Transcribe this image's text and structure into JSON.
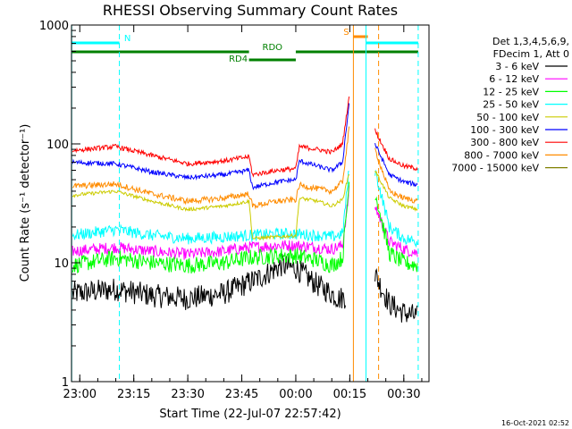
{
  "chart_data": {
    "type": "line",
    "title": "RHESSI Observing Summary Count Rates",
    "xlabel": "Start Time (22-Jul-07 22:57:42)",
    "ylabel": "Count Rate (s⁻¹ detector⁻¹)",
    "y_scale": "log",
    "ylim": [
      1,
      1000
    ],
    "xlim": [
      "22:57:42",
      "00:37:00"
    ],
    "x_ticks": [
      "23:00",
      "23:15",
      "23:30",
      "23:45",
      "00:00",
      "00:15",
      "00:30"
    ],
    "y_ticks": [
      "1",
      "10",
      "100",
      "1000"
    ],
    "legend_header": [
      "Det 1,3,4,5,6,9,",
      "FDecim 1, Att 0"
    ],
    "legend_position": "right",
    "footer_date": "16-Oct-2021 02:52",
    "flags": [
      {
        "label": "N",
        "color": "#00ffff",
        "segments": [
          [
            "22:57:42",
            "23:11:00"
          ],
          [
            "00:19:30",
            "00:34:00"
          ]
        ]
      },
      {
        "label": "S",
        "color": "#ff8c00",
        "segments": [
          [
            "00:16:00",
            "00:20:00"
          ]
        ]
      },
      {
        "label": "RDO",
        "color": "#008000",
        "segments": [
          [
            "22:57:42",
            "23:47:00"
          ],
          [
            "00:00:00",
            "00:34:00"
          ]
        ]
      },
      {
        "label": "RD4",
        "color": "#008000",
        "segments": [
          [
            "23:47:00",
            "00:00:00"
          ]
        ]
      }
    ],
    "series": [
      {
        "name": "3 - 6 keV",
        "color": "#000000",
        "noise": 0.1,
        "points": [
          [
            "22:58",
            5.5
          ],
          [
            "23:10",
            6.0
          ],
          [
            "23:20",
            5.3
          ],
          [
            "23:30",
            5.0
          ],
          [
            "23:40",
            5.5
          ],
          [
            "23:50",
            7.5
          ],
          [
            "23:56",
            9.5
          ],
          [
            "00:00",
            9.0
          ],
          [
            "00:06",
            6.5
          ],
          [
            "00:10",
            5.5
          ],
          [
            "00:12",
            5.0
          ],
          [
            "00:14",
            5.2
          ]
        ],
        "post": [
          [
            "00:22",
            8.0
          ],
          [
            "00:26",
            4.5
          ],
          [
            "00:30",
            3.8
          ],
          [
            "00:34",
            3.5
          ]
        ]
      },
      {
        "name": "6 - 12 keV",
        "color": "#ff00ff",
        "noise": 0.05,
        "points": [
          [
            "22:58",
            12.5
          ],
          [
            "23:10",
            13.5
          ],
          [
            "23:20",
            12.5
          ],
          [
            "23:30",
            11.8
          ],
          [
            "23:40",
            12.5
          ],
          [
            "23:47",
            13.5
          ],
          [
            "23:55",
            14.0
          ],
          [
            "00:00",
            14.0
          ],
          [
            "00:06",
            13.5
          ],
          [
            "00:10",
            13.0
          ],
          [
            "00:13",
            14.0
          ],
          [
            "00:15",
            45.0
          ]
        ],
        "post": [
          [
            "00:22",
            30.0
          ],
          [
            "00:26",
            15.0
          ],
          [
            "00:30",
            13.0
          ],
          [
            "00:34",
            12.0
          ]
        ]
      },
      {
        "name": "12 - 25 keV",
        "color": "#00ff00",
        "noise": 0.07,
        "points": [
          [
            "22:58",
            9.5
          ],
          [
            "23:10",
            11.0
          ],
          [
            "23:20",
            10.0
          ],
          [
            "23:30",
            9.5
          ],
          [
            "23:40",
            10.0
          ],
          [
            "23:47",
            11.0
          ],
          [
            "23:55",
            11.5
          ],
          [
            "00:00",
            11.5
          ],
          [
            "00:06",
            10.5
          ],
          [
            "00:10",
            9.5
          ],
          [
            "00:13",
            11.0
          ],
          [
            "00:15",
            55.0
          ]
        ],
        "post": [
          [
            "00:22",
            40.0
          ],
          [
            "00:26",
            12.0
          ],
          [
            "00:30",
            10.0
          ],
          [
            "00:34",
            9.5
          ]
        ]
      },
      {
        "name": "25 - 50 keV",
        "color": "#00ffff",
        "noise": 0.05,
        "points": [
          [
            "22:58",
            17.0
          ],
          [
            "23:10",
            19.0
          ],
          [
            "23:20",
            17.0
          ],
          [
            "23:30",
            16.0
          ],
          [
            "23:40",
            16.5
          ],
          [
            "23:47",
            17.0
          ],
          [
            "23:55",
            17.5
          ],
          [
            "00:00",
            17.5
          ],
          [
            "00:06",
            17.0
          ],
          [
            "00:10",
            16.5
          ],
          [
            "00:13",
            17.5
          ],
          [
            "00:15",
            70.0
          ]
        ],
        "post": [
          [
            "00:22",
            60.0
          ],
          [
            "00:26",
            20.0
          ],
          [
            "00:30",
            16.0
          ],
          [
            "00:34",
            15.0
          ]
        ]
      },
      {
        "name": "50 - 100 keV",
        "color": "#cccc00",
        "noise": 0.015,
        "points": [
          [
            "22:58",
            37.0
          ],
          [
            "23:10",
            40.0
          ],
          [
            "23:20",
            33.0
          ],
          [
            "23:30",
            28.0
          ],
          [
            "23:40",
            30.0
          ],
          [
            "23:47",
            33.0
          ],
          [
            "23:48",
            16.0
          ],
          [
            "23:55",
            16.5
          ],
          [
            "00:00",
            17.0
          ],
          [
            "00:01",
            35.0
          ],
          [
            "00:06",
            33.0
          ],
          [
            "00:10",
            30.0
          ],
          [
            "00:13",
            34.0
          ],
          [
            "00:15",
            60.0
          ]
        ],
        "post": [
          [
            "00:22",
            60.0
          ],
          [
            "00:26",
            35.0
          ],
          [
            "00:30",
            30.0
          ],
          [
            "00:34",
            28.0
          ]
        ]
      },
      {
        "name": "100 - 300 keV",
        "color": "#0000ff",
        "noise": 0.02,
        "points": [
          [
            "22:58",
            70.0
          ],
          [
            "23:10",
            68.0
          ],
          [
            "23:20",
            58.0
          ],
          [
            "23:30",
            52.0
          ],
          [
            "23:40",
            55.0
          ],
          [
            "23:47",
            60.0
          ],
          [
            "23:48",
            43.0
          ],
          [
            "23:55",
            48.0
          ],
          [
            "00:00",
            50.0
          ],
          [
            "00:01",
            72.0
          ],
          [
            "00:06",
            65.0
          ],
          [
            "00:10",
            60.0
          ],
          [
            "00:13",
            70.0
          ],
          [
            "00:15",
            250.0
          ]
        ],
        "post": [
          [
            "00:22",
            100.0
          ],
          [
            "00:26",
            55.0
          ],
          [
            "00:30",
            48.0
          ],
          [
            "00:34",
            45.0
          ]
        ]
      },
      {
        "name": "300 - 800 keV",
        "color": "#ff0000",
        "noise": 0.02,
        "points": [
          [
            "22:58",
            88.0
          ],
          [
            "23:10",
            95.0
          ],
          [
            "23:20",
            80.0
          ],
          [
            "23:30",
            68.0
          ],
          [
            "23:40",
            72.0
          ],
          [
            "23:47",
            78.0
          ],
          [
            "23:48",
            55.0
          ],
          [
            "23:55",
            60.0
          ],
          [
            "00:00",
            62.0
          ],
          [
            "00:01",
            95.0
          ],
          [
            "00:06",
            90.0
          ],
          [
            "00:10",
            85.0
          ],
          [
            "00:13",
            100.0
          ],
          [
            "00:15",
            280.0
          ]
        ],
        "post": [
          [
            "00:22",
            130.0
          ],
          [
            "00:26",
            75.0
          ],
          [
            "00:30",
            65.0
          ],
          [
            "00:34",
            62.0
          ]
        ]
      },
      {
        "name": "800 - 7000 keV",
        "color": "#ff8c00",
        "noise": 0.025,
        "points": [
          [
            "22:58",
            44.0
          ],
          [
            "23:10",
            46.0
          ],
          [
            "23:20",
            38.0
          ],
          [
            "23:30",
            33.0
          ],
          [
            "23:40",
            35.0
          ],
          [
            "23:47",
            38.0
          ],
          [
            "23:48",
            30.0
          ],
          [
            "23:55",
            33.0
          ],
          [
            "00:00",
            34.0
          ],
          [
            "00:01",
            45.0
          ],
          [
            "00:06",
            42.0
          ],
          [
            "00:10",
            40.0
          ],
          [
            "00:13",
            48.0
          ],
          [
            "00:15",
            150.0
          ]
        ],
        "post": [
          [
            "00:22",
            90.0
          ],
          [
            "00:26",
            40.0
          ],
          [
            "00:30",
            35.0
          ],
          [
            "00:34",
            33.0
          ]
        ]
      },
      {
        "name": "7000 - 15000 keV",
        "color": "#808000",
        "noise": 0,
        "points": [],
        "post": []
      }
    ]
  }
}
